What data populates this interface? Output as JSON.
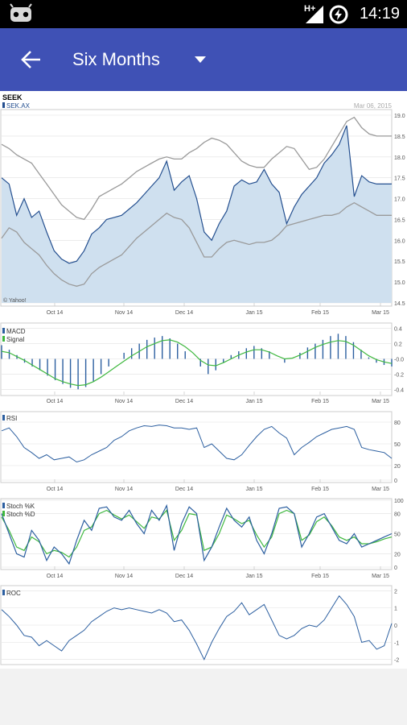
{
  "status_bar": {
    "time": "14:19",
    "network": "H+",
    "icons": [
      "cyanogen-robot-icon",
      "signal-icon",
      "battery-charging-icon"
    ]
  },
  "app_bar": {
    "title": "Six Months",
    "back_icon": "arrow-left-icon",
    "dropdown_icon": "caret-down-icon",
    "color": "#3f51b5"
  },
  "chart_header": {
    "title": "SEEK",
    "symbol": "SEK.AX",
    "date": "Mar 06, 2015",
    "watermark": "© Yahoo!"
  },
  "chart_data": [
    {
      "type": "line",
      "name": "price",
      "x_ticks": [
        "Oct 14",
        "Nov 14",
        "Dec 14",
        "Jan 15",
        "Feb 15",
        "Mar 15"
      ],
      "y_ticks": [
        "19.0",
        "18.5",
        "18.0",
        "17.5",
        "17.0",
        "16.5",
        "16.0",
        "15.5",
        "15.0",
        "14.5"
      ],
      "ylim": [
        14.5,
        19.0
      ],
      "series": [
        {
          "name": "SEK.AX",
          "values": [
            17.5,
            17.35,
            16.6,
            17.0,
            16.55,
            16.7,
            16.2,
            15.75,
            15.55,
            15.45,
            15.5,
            15.75,
            16.15,
            16.3,
            16.5,
            16.55,
            16.6,
            16.75,
            16.9,
            17.1,
            17.3,
            17.5,
            17.9,
            17.2,
            17.4,
            17.55,
            17.0,
            16.2,
            16.0,
            16.4,
            16.7,
            17.3,
            17.45,
            17.35,
            17.4,
            17.7,
            17.35,
            17.15,
            16.4,
            16.8,
            17.1,
            17.3,
            17.5,
            17.85,
            18.05,
            18.3,
            18.75,
            17.05,
            17.55,
            17.4,
            17.35,
            17.35,
            17.35
          ]
        },
        {
          "name": "Upper band",
          "values": [
            18.3,
            18.2,
            18.05,
            17.95,
            17.85,
            17.6,
            17.35,
            17.1,
            16.85,
            16.7,
            16.55,
            16.5,
            16.75,
            17.05,
            17.15,
            17.25,
            17.35,
            17.5,
            17.65,
            17.75,
            17.85,
            17.95,
            18.0,
            17.95,
            17.95,
            18.1,
            18.2,
            18.35,
            18.45,
            18.4,
            18.3,
            18.1,
            17.9,
            17.8,
            17.75,
            17.75,
            17.95,
            18.1,
            18.25,
            18.2,
            17.95,
            17.7,
            17.75,
            17.95,
            18.25,
            18.55,
            18.85,
            18.95,
            18.7,
            18.55,
            18.5,
            18.5,
            18.5
          ]
        },
        {
          "name": "Lower band",
          "values": [
            16.05,
            16.3,
            16.2,
            15.95,
            15.8,
            15.65,
            15.4,
            15.2,
            15.05,
            14.95,
            14.9,
            14.95,
            15.2,
            15.35,
            15.45,
            15.55,
            15.65,
            15.85,
            16.05,
            16.2,
            16.35,
            16.5,
            16.65,
            16.55,
            16.5,
            16.3,
            15.95,
            15.6,
            15.6,
            15.8,
            15.95,
            16.0,
            15.95,
            15.9,
            15.95,
            15.95,
            16.0,
            16.15,
            16.35,
            16.4,
            16.45,
            16.5,
            16.55,
            16.6,
            16.6,
            16.65,
            16.8,
            16.9,
            16.8,
            16.7,
            16.6,
            16.6,
            16.6
          ]
        }
      ]
    },
    {
      "type": "bar",
      "name": "macd",
      "legend": [
        "MACD",
        "Signal"
      ],
      "x_ticks": [
        "Oct 14",
        "Nov 14",
        "Dec 14",
        "Jan 15",
        "Feb 15",
        "Mar 15"
      ],
      "y_ticks": [
        "0.4",
        "0.2",
        "-0.0",
        "-0.2",
        "-0.4"
      ],
      "ylim": [
        -0.45,
        0.45
      ],
      "histogram": [
        0.18,
        0.12,
        0.05,
        -0.05,
        -0.1,
        -0.15,
        -0.22,
        -0.28,
        -0.33,
        -0.38,
        -0.4,
        -0.37,
        -0.3,
        -0.2,
        -0.1,
        0.0,
        0.08,
        0.14,
        0.2,
        0.25,
        0.28,
        0.3,
        0.27,
        0.2,
        0.1,
        0.0,
        -0.1,
        -0.2,
        -0.15,
        -0.05,
        0.05,
        0.1,
        0.14,
        0.17,
        0.14,
        0.1,
        0.0,
        -0.05,
        0.0,
        0.08,
        0.15,
        0.2,
        0.25,
        0.3,
        0.33,
        0.3,
        0.22,
        0.12,
        0.02,
        -0.05,
        -0.08,
        -0.1
      ],
      "signal": [
        0.1,
        0.08,
        0.03,
        -0.02,
        -0.08,
        -0.14,
        -0.2,
        -0.26,
        -0.3,
        -0.33,
        -0.35,
        -0.34,
        -0.3,
        -0.24,
        -0.17,
        -0.1,
        -0.03,
        0.04,
        0.1,
        0.16,
        0.2,
        0.24,
        0.25,
        0.22,
        0.16,
        0.08,
        -0.02,
        -0.08,
        -0.09,
        -0.05,
        0.0,
        0.05,
        0.09,
        0.12,
        0.12,
        0.09,
        0.04,
        0.0,
        0.01,
        0.05,
        0.1,
        0.15,
        0.19,
        0.22,
        0.24,
        0.23,
        0.18,
        0.11,
        0.04,
        -0.01,
        -0.04,
        -0.06
      ]
    },
    {
      "type": "line",
      "name": "rsi",
      "legend": [
        "RSI"
      ],
      "x_ticks": [
        "Oct 14",
        "Nov 14",
        "Dec 14",
        "Jan 15",
        "Feb 15",
        "Mar 15"
      ],
      "y_ticks": [
        "80",
        "50",
        "20",
        "0"
      ],
      "ylim": [
        0,
        90
      ],
      "values": [
        68,
        72,
        60,
        45,
        38,
        30,
        35,
        28,
        30,
        32,
        25,
        28,
        35,
        40,
        45,
        55,
        60,
        68,
        72,
        75,
        74,
        76,
        75,
        72,
        72,
        70,
        72,
        45,
        50,
        40,
        30,
        28,
        35,
        48,
        60,
        70,
        74,
        65,
        58,
        35,
        45,
        52,
        60,
        65,
        70,
        72,
        74,
        70,
        45,
        42,
        40,
        38,
        30
      ]
    },
    {
      "type": "line",
      "name": "stochastic",
      "legend": [
        "Stoch %K",
        "Stoch %D"
      ],
      "x_ticks": [
        "Oct 14",
        "Nov 14",
        "Dec 14",
        "Jan 15",
        "Feb 15",
        "Mar 15"
      ],
      "y_ticks": [
        "100",
        "80",
        "50",
        "20",
        "0"
      ],
      "ylim": [
        0,
        100
      ],
      "series": [
        {
          "name": "Stoch %K",
          "values": [
            80,
            50,
            20,
            15,
            55,
            40,
            10,
            30,
            20,
            5,
            40,
            70,
            55,
            88,
            90,
            75,
            70,
            85,
            65,
            50,
            85,
            70,
            92,
            25,
            65,
            90,
            80,
            10,
            30,
            60,
            88,
            70,
            60,
            75,
            40,
            20,
            50,
            88,
            90,
            80,
            30,
            50,
            75,
            80,
            60,
            40,
            35,
            50,
            30,
            35,
            40,
            45,
            50
          ]
        },
        {
          "name": "Stoch %D",
          "values": [
            75,
            55,
            30,
            25,
            45,
            38,
            20,
            25,
            22,
            15,
            30,
            55,
            60,
            80,
            85,
            78,
            72,
            78,
            68,
            58,
            75,
            72,
            85,
            40,
            55,
            80,
            78,
            25,
            30,
            50,
            78,
            72,
            65,
            70,
            48,
            30,
            45,
            80,
            85,
            80,
            40,
            48,
            68,
            75,
            62,
            45,
            40,
            45,
            35,
            35,
            38,
            42,
            45
          ]
        }
      ]
    },
    {
      "type": "line",
      "name": "roc",
      "legend": [
        "ROC"
      ],
      "x_ticks": [
        "Oct 14",
        "Nov 14",
        "Dec 14",
        "Jan 15",
        "Feb 15",
        "Mar 15"
      ],
      "y_ticks": [
        "2",
        "1",
        "0",
        "-1",
        "-2"
      ],
      "ylim": [
        -2.2,
        2.2
      ],
      "values": [
        0.9,
        0.5,
        0.0,
        -0.6,
        -0.7,
        -1.2,
        -0.9,
        -1.2,
        -1.5,
        -0.9,
        -0.6,
        -0.3,
        0.2,
        0.5,
        0.8,
        1.0,
        0.9,
        1.0,
        0.9,
        0.8,
        0.7,
        0.9,
        0.7,
        0.2,
        0.3,
        -0.3,
        -1.1,
        -2.0,
        -1.0,
        -0.2,
        0.5,
        0.8,
        1.3,
        0.6,
        0.9,
        1.2,
        0.3,
        -0.6,
        -0.8,
        -0.6,
        -0.2,
        0.0,
        -0.1,
        0.3,
        1.0,
        1.7,
        1.2,
        0.5,
        -1.0,
        -0.9,
        -1.4,
        -1.2,
        0.1
      ]
    }
  ],
  "colors": {
    "price_line": "#244f8f",
    "price_fill": "#cfe0ef",
    "bands": "#9a9a9a",
    "indicator_line": "#2c5fa0",
    "signal_line": "#3fb83f",
    "grid": "#e0e0e0",
    "axis_text": "#555555"
  }
}
